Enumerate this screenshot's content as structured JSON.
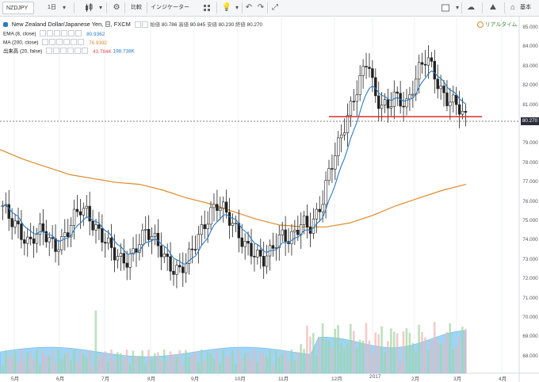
{
  "toolbar": {
    "symbol": "NZDJPY",
    "interval": "1日",
    "compare_label": "比較",
    "indicators_label": "インジケーター",
    "basic_label": "基本",
    "icons": [
      "candles-icon",
      "bar-type-icon",
      "settings-icon",
      "alert-icon",
      "undo-icon",
      "redo-icon",
      "fullscreen-icon",
      "cloud-icon",
      "snapshot-icon",
      "publish-icon"
    ]
  },
  "header": {
    "title": "New Zealand Dollar/Japanese Yen, 日, FXCM",
    "o_label": "始値",
    "o": "80.786",
    "h_label": "高値",
    "h": "80.845",
    "l_label": "安値",
    "l": "80.230",
    "c_label": "終値",
    "c": "80.270",
    "realtime_label": "リアルタイム"
  },
  "indicators": {
    "ema": {
      "label": "EMA (8, close)",
      "value": "80.9362",
      "color": "#2b7bc4"
    },
    "ma": {
      "label": "MA (200, close)",
      "value": "76.9392",
      "color": "#e08a2a"
    },
    "vol": {
      "label": "出来高 (20, false)",
      "value1": "43.784K",
      "value2": "198.738K",
      "color1": "#e2504c",
      "color2": "#2b7bc4"
    }
  },
  "price_axis": [
    "85.000",
    "84.000",
    "83.000",
    "82.000",
    "81.000",
    "80.000",
    "79.000",
    "78.000",
    "77.000",
    "76.000",
    "75.000",
    "74.000",
    "73.000",
    "72.000",
    "71.000",
    "70.000",
    "69.000",
    "68.000"
  ],
  "time_axis": [
    "5月",
    "6月",
    "7月",
    "8月",
    "9月",
    "10月",
    "11月",
    "12月",
    "2017",
    "2月",
    "3月",
    "4月"
  ],
  "last_price": "80.270",
  "colors": {
    "candle": "#222222",
    "ema": "#2b7bc4",
    "ma": "#e08a2a",
    "support": "#d9302c",
    "vol_area": "#8ecdf2",
    "vol_up": "#9fd49f",
    "vol_down": "#e9b6b6"
  },
  "chart_data": {
    "type": "candlestick",
    "symbol": "NZDJPY",
    "timeframe": "daily",
    "ylim": [
      67.5,
      85.5
    ],
    "price_close_approx": [
      75.8,
      75.2,
      74.8,
      74.2,
      73.8,
      74.3,
      74.6,
      74.1,
      73.6,
      73.9,
      74.5,
      75.3,
      75.7,
      75.4,
      74.7,
      74.3,
      73.9,
      73.4,
      73.0,
      72.9,
      73.3,
      74.0,
      74.5,
      74.2,
      73.7,
      73.0,
      72.5,
      72.4,
      72.8,
      73.5,
      74.2,
      74.8,
      75.5,
      75.9,
      75.6,
      75.0,
      74.4,
      73.8,
      73.5,
      73.2,
      73.0,
      73.4,
      74.0,
      74.3,
      74.0,
      74.5,
      75.0,
      74.6,
      75.2,
      76.0,
      77.5,
      78.5,
      79.5,
      80.5,
      81.5,
      82.5,
      83.5,
      81.5,
      81.0,
      80.9,
      81.5,
      81.2,
      81.0,
      82.0,
      83.0,
      83.5,
      82.8,
      81.8,
      81.3,
      81.2,
      80.9,
      80.3
    ],
    "support_level": 80.4,
    "ema_8_last": 80.9362,
    "ma_200_last": 76.9392,
    "ma_200_path": [
      78.7,
      78.2,
      77.8,
      77.4,
      77.2,
      77.0,
      76.9,
      76.6,
      76.2,
      75.9,
      75.5,
      75.1,
      74.8,
      74.7,
      74.7,
      74.9,
      75.3,
      75.8,
      76.2,
      76.6,
      76.9
    ],
    "volume_last": "43.784K",
    "volume_ma_last": "198.738K"
  }
}
